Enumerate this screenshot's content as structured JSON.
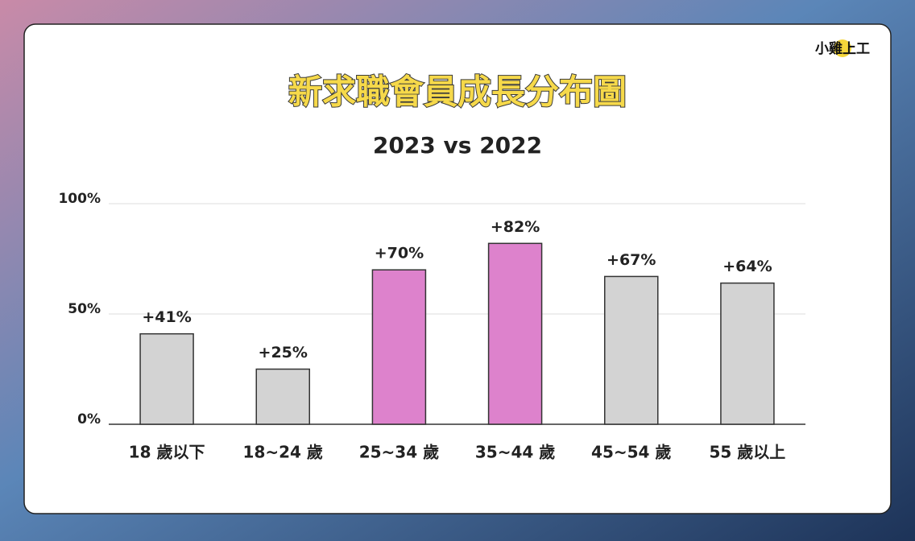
{
  "logo": "小雞上工",
  "chart_data": {
    "type": "bar",
    "title": "新求職會員成長分布圖",
    "subtitle": "2023 vs 2022",
    "categories": [
      "18 歲以下",
      "18~24 歲",
      "25~34 歲",
      "35~44 歲",
      "45~54 歲",
      "55 歲以上"
    ],
    "values": [
      41,
      25,
      70,
      82,
      67,
      64
    ],
    "value_labels": [
      "+41%",
      "+25%",
      "+70%",
      "+82%",
      "+67%",
      "+64%"
    ],
    "colors": [
      "#d3d3d3",
      "#d3d3d3",
      "#dd82cc",
      "#dd82cc",
      "#d3d3d3",
      "#d3d3d3"
    ],
    "ylim": [
      0,
      100
    ],
    "yticks": [
      {
        "value": 0,
        "label": "0%"
      },
      {
        "value": 50,
        "label": "50%"
      },
      {
        "value": 100,
        "label": "100%"
      }
    ],
    "grid": true
  }
}
